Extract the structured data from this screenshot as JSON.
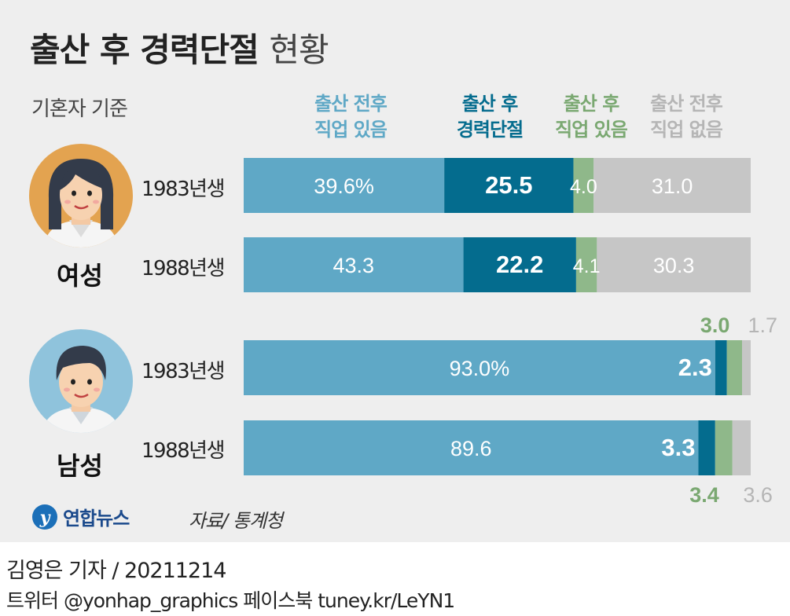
{
  "title": "출산 후 경력단절",
  "title_suffix": "현황",
  "basis_note": "기혼자 기준",
  "legend": [
    {
      "line1": "출산 전후",
      "line2": "직업 있음",
      "color": "#5fa8c6"
    },
    {
      "line1": "출산 후",
      "line2": "경력단절",
      "color": "#046c8e"
    },
    {
      "line1": "출산 후",
      "line2": "직업 있음",
      "color": "#8fb88a"
    },
    {
      "line1": "출산 전후",
      "line2": "직업 없음",
      "color": "#bdbdbd"
    }
  ],
  "groups": [
    {
      "label": "여성",
      "avatar": "woman-avatar-icon"
    },
    {
      "label": "남성",
      "avatar": "man-avatar-icon"
    }
  ],
  "colors": {
    "employed_both": "#5fa8c6",
    "career_break": "#046c8e",
    "employed_after": "#8fb88a",
    "not_employed": "#c6c6c6",
    "label_green": "#7aa871",
    "label_gray": "#b5b5b5"
  },
  "chart_data": {
    "type": "bar",
    "orientation": "horizontal",
    "stacked": true,
    "unit": "%",
    "series_names": [
      "출산 전후 직업 있음",
      "출산 후 경력단절",
      "출산 후 직업 있음",
      "출산 전후 직업 없음"
    ],
    "rows": [
      {
        "group": "여성",
        "label": "1983년생",
        "values": [
          39.6,
          25.5,
          4.0,
          31.0
        ],
        "texts": [
          "39.6%",
          "25.5",
          "4.0",
          "31.0"
        ]
      },
      {
        "group": "여성",
        "label": "1988년생",
        "values": [
          43.3,
          22.2,
          4.1,
          30.3
        ],
        "texts": [
          "43.3",
          "22.2",
          "4.1",
          "30.3"
        ]
      },
      {
        "group": "남성",
        "label": "1983년생",
        "values": [
          93.0,
          2.3,
          3.0,
          1.7
        ],
        "texts": [
          "93.0%",
          "2.3",
          "3.0",
          "1.7"
        ]
      },
      {
        "group": "남성",
        "label": "1988년생",
        "values": [
          89.6,
          3.3,
          3.4,
          3.6
        ],
        "texts": [
          "89.6",
          "3.3",
          "3.4",
          "3.6"
        ]
      }
    ]
  },
  "logo": {
    "text": "연합뉴스",
    "icon": "yonhap-logo-icon"
  },
  "source": "자료/ 통계청",
  "byline": "김영은 기자 / 20211214",
  "social": "트위터 @yonhap_graphics  페이스북 tuney.kr/LeYN1"
}
